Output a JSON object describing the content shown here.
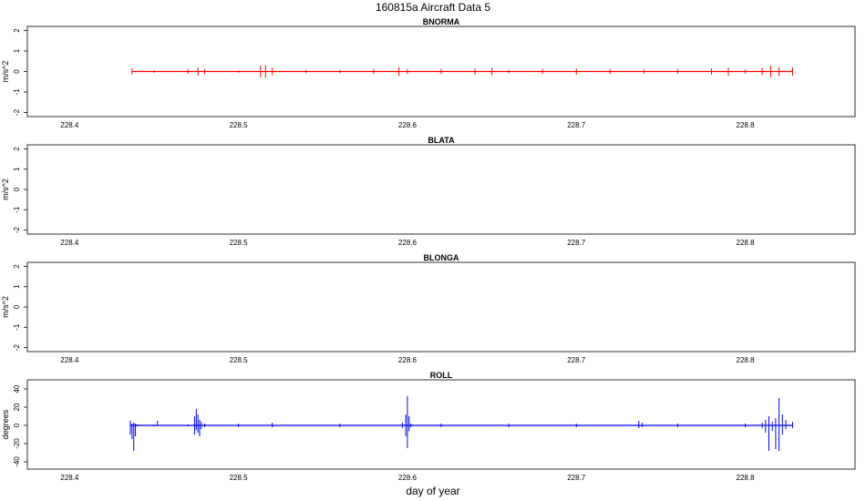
{
  "figure": {
    "title": "160815a   Aircraft Data 5",
    "xlabel": "day of year"
  },
  "chart_data": [
    {
      "type": "line",
      "title": "BNORMA",
      "ylabel": "m/s^2",
      "xlim": [
        228.375,
        228.865
      ],
      "ylim": [
        -2.2,
        2.2
      ],
      "xticks": [
        228.4,
        228.5,
        228.6,
        228.7,
        228.8
      ],
      "xtick_labels": [
        "228.4",
        "228.5",
        "228.6",
        "228.7",
        "228.8"
      ],
      "yticks": [
        -2,
        -1,
        0,
        1,
        2
      ],
      "ytick_labels": [
        "-2",
        "-1",
        "0",
        "1",
        "2"
      ],
      "color": "#ff0000",
      "series": [
        {
          "x": [
            228.437,
            228.45,
            228.47,
            228.476,
            228.48,
            228.5,
            228.513,
            228.516,
            228.52,
            228.54,
            228.56,
            228.58,
            228.595,
            228.6,
            228.62,
            228.64,
            228.65,
            228.66,
            228.68,
            228.7,
            228.72,
            228.74,
            228.76,
            228.78,
            228.79,
            228.8,
            228.81,
            228.815,
            228.82,
            228.828
          ],
          "ymax": [
            0.15,
            0.06,
            0.12,
            0.2,
            0.12,
            0.06,
            0.28,
            0.3,
            0.18,
            0.08,
            0.08,
            0.12,
            0.22,
            0.12,
            0.12,
            0.15,
            0.18,
            0.08,
            0.12,
            0.15,
            0.12,
            0.1,
            0.12,
            0.15,
            0.2,
            0.1,
            0.18,
            0.28,
            0.22,
            0.2
          ],
          "ymin": [
            -0.15,
            -0.06,
            -0.12,
            -0.2,
            -0.12,
            -0.06,
            -0.28,
            -0.3,
            -0.18,
            -0.08,
            -0.08,
            -0.12,
            -0.22,
            -0.12,
            -0.12,
            -0.15,
            -0.18,
            -0.08,
            -0.12,
            -0.15,
            -0.12,
            -0.1,
            -0.12,
            -0.15,
            -0.2,
            -0.1,
            -0.18,
            -0.28,
            -0.22,
            -0.2
          ]
        }
      ]
    },
    {
      "type": "line",
      "title": "BLATA",
      "ylabel": "m/s^2",
      "xlim": [
        228.375,
        228.865
      ],
      "ylim": [
        -2.2,
        2.2
      ],
      "xticks": [
        228.4,
        228.5,
        228.6,
        228.7,
        228.8
      ],
      "xtick_labels": [
        "228.4",
        "228.5",
        "228.6",
        "228.7",
        "228.8"
      ],
      "yticks": [
        -2,
        -1,
        0,
        1,
        2
      ],
      "ytick_labels": [
        "-2",
        "-1",
        "0",
        "1",
        "2"
      ],
      "color": "#000000",
      "series": []
    },
    {
      "type": "line",
      "title": "BLONGA",
      "ylabel": "m/s^2",
      "xlim": [
        228.375,
        228.865
      ],
      "ylim": [
        -2.2,
        2.2
      ],
      "xticks": [
        228.4,
        228.5,
        228.6,
        228.7,
        228.8
      ],
      "xtick_labels": [
        "228.4",
        "228.5",
        "228.6",
        "228.7",
        "228.8"
      ],
      "yticks": [
        -2,
        -1,
        0,
        1,
        2
      ],
      "ytick_labels": [
        "-2",
        "-1",
        "0",
        "1",
        "2"
      ],
      "color": "#000000",
      "series": []
    },
    {
      "type": "line",
      "title": "ROLL",
      "ylabel": "degrees",
      "xlim": [
        228.375,
        228.865
      ],
      "ylim": [
        -48,
        50
      ],
      "xticks": [
        228.4,
        228.5,
        228.6,
        228.7,
        228.8
      ],
      "xtick_labels": [
        "228.4",
        "228.5",
        "228.6",
        "228.7",
        "228.8"
      ],
      "yticks": [
        -40,
        -20,
        0,
        20,
        40
      ],
      "ytick_labels": [
        "-40",
        "-20",
        "0",
        "20",
        "40"
      ],
      "color": "#0000ff",
      "series": [
        {
          "x": [
            228.436,
            228.437,
            228.438,
            228.439,
            228.44,
            228.45,
            228.452,
            228.47,
            228.474,
            228.475,
            228.476,
            228.477,
            228.478,
            228.48,
            228.5,
            228.52,
            228.56,
            228.597,
            228.599,
            228.6,
            228.601,
            228.602,
            228.62,
            228.66,
            228.7,
            228.737,
            228.739,
            228.76,
            228.8,
            228.81,
            228.812,
            228.814,
            228.816,
            228.818,
            228.82,
            228.822,
            228.824,
            228.828
          ],
          "ymax": [
            5,
            2,
            3,
            2,
            1,
            1,
            5,
            1,
            10,
            18,
            12,
            6,
            4,
            2,
            2,
            3,
            2,
            3,
            12,
            32,
            10,
            2,
            2,
            2,
            2,
            5,
            3,
            2,
            2,
            3,
            6,
            10,
            4,
            8,
            30,
            12,
            6,
            4
          ],
          "ymin": [
            -10,
            -15,
            -28,
            -12,
            -1,
            -1,
            0,
            -1,
            -10,
            -5,
            -8,
            -12,
            -4,
            -2,
            -2,
            -2,
            -2,
            -3,
            -12,
            -25,
            -6,
            -2,
            -2,
            -2,
            -2,
            -3,
            -2,
            -2,
            -2,
            -3,
            -8,
            -28,
            -6,
            -26,
            -28,
            -10,
            -4,
            -3
          ]
        }
      ]
    }
  ]
}
